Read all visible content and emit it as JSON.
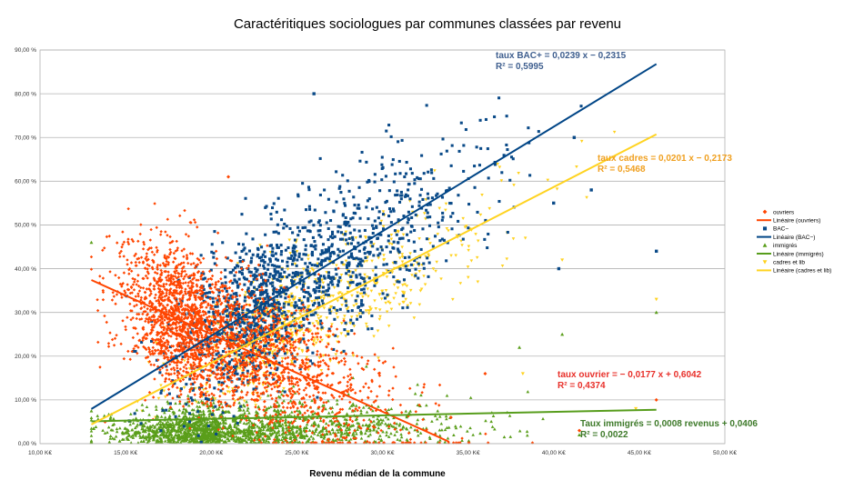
{
  "chart_data": {
    "type": "scatter",
    "title": "Caractéritiques sociologues par communes classées par revenu",
    "xlabel": "Revenu médian de la commune",
    "ylabel": "",
    "xlim": [
      10,
      50
    ],
    "ylim": [
      0,
      0.9
    ],
    "x_ticks": [
      "10,00 K€",
      "15,00 K€",
      "20,00 K€",
      "25,00 K€",
      "30,00 K€",
      "35,00 K€",
      "40,00 K€",
      "45,00 K€",
      "50,00 K€"
    ],
    "y_ticks": [
      "0,00 %",
      "10,00 %",
      "20,00 %",
      "30,00 %",
      "40,00 %",
      "50,00 %",
      "60,00 %",
      "70,00 %",
      "80,00 %",
      "90,00 %"
    ],
    "grid": true,
    "legend_position": "right",
    "series": [
      {
        "name": "ouvriers",
        "marker": "diamond",
        "color": "#ff4500",
        "trend_name": "Linéaire (ouvriers)",
        "slope": -0.0177,
        "intercept": 0.6042,
        "trend_x": [
          13,
          33.9
        ],
        "equation": "taux ouvrier = − 0,0177 x + 0,6042",
        "r2": "R² = 0,4374",
        "eq_color": "#e8302a",
        "points": [
          [
            26.5,
            0.005
          ],
          [
            46,
            0.1
          ],
          [
            41.5,
            0.03
          ],
          [
            21,
            0.61
          ],
          [
            13.8,
            0.05
          ],
          [
            34,
            0.06
          ],
          [
            36,
            0.16
          ]
        ]
      },
      {
        "name": "BAC−",
        "marker": "square",
        "color": "#0a4a88",
        "trend_name": "Linéaire (BAC−)",
        "slope": 0.0239,
        "intercept": -0.2315,
        "trend_x": [
          13,
          46
        ],
        "equation": "taux BAC+ = 0,0239 x − 0,2315",
        "r2": "R² = 0,5995",
        "eq_color": "#3f5f8f",
        "points": [
          [
            26,
            0.8
          ],
          [
            46,
            0.44
          ],
          [
            40,
            0.55
          ],
          [
            41.2,
            0.7
          ],
          [
            42.2,
            0.58
          ],
          [
            40.3,
            0.4
          ]
        ]
      },
      {
        "name": "immigrés",
        "marker": "triangle",
        "color": "#5a9e1a",
        "trend_name": "Linéaire (immigrés)",
        "slope": 0.0008,
        "intercept": 0.0406,
        "trend_x": [
          13,
          46
        ],
        "equation": "Taux immigrés = 0,0008 revenus + 0,0406",
        "r2": "R² = 0,0022",
        "eq_color": "#3e7a2a",
        "points": [
          [
            13,
            0.46
          ],
          [
            46,
            0.3
          ],
          [
            40.5,
            0.25
          ],
          [
            41.5,
            0.02
          ],
          [
            38,
            0.22
          ]
        ]
      },
      {
        "name": "cadres et lib",
        "marker": "triangle-down",
        "color": "#ffd21f",
        "trend_name": "Linéaire (cadres et lib)",
        "slope": 0.0201,
        "intercept": -0.2173,
        "trend_x": [
          13,
          46
        ],
        "equation": "taux cadres = 0,0201 x − 0,2173",
        "r2": "R² = 0,5468",
        "eq_color": "#f0a020",
        "points": [
          [
            46,
            0.33
          ],
          [
            40.5,
            0.42
          ],
          [
            38.2,
            0.16
          ],
          [
            44.8,
            0.08
          ]
        ]
      }
    ]
  }
}
